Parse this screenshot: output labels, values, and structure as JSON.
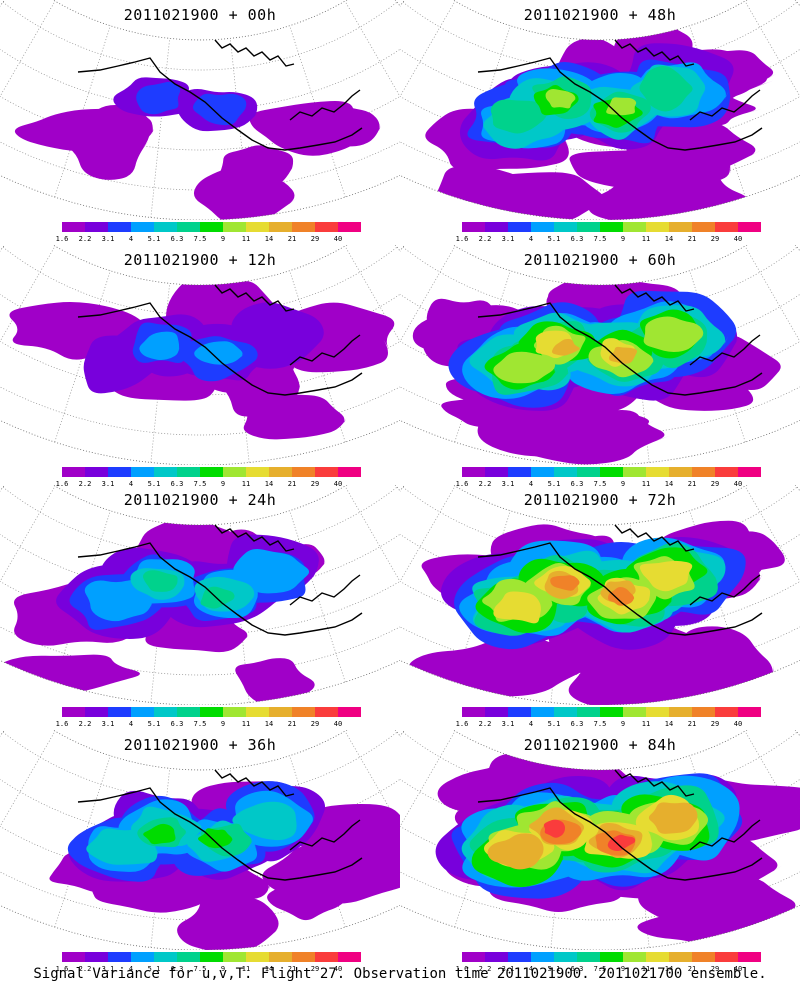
{
  "panels": [
    {
      "title": "2011021900 + 00h",
      "lead_hours": 0
    },
    {
      "title": "2011021900 + 48h",
      "lead_hours": 48
    },
    {
      "title": "2011021900 + 12h",
      "lead_hours": 12
    },
    {
      "title": "2011021900 + 60h",
      "lead_hours": 60
    },
    {
      "title": "2011021900 + 24h",
      "lead_hours": 24
    },
    {
      "title": "2011021900 + 72h",
      "lead_hours": 72
    },
    {
      "title": "2011021900 + 36h",
      "lead_hours": 36
    },
    {
      "title": "2011021900 + 84h",
      "lead_hours": 84
    }
  ],
  "colorbar": {
    "labels": [
      "1.6",
      "2.2",
      "3.1",
      "4",
      "5.1",
      "6.3",
      "7.5",
      "9",
      "11",
      "14",
      "21",
      "29",
      "40"
    ],
    "colors": [
      "#a000c8",
      "#7800dc",
      "#1e3cff",
      "#00a0ff",
      "#00c8c8",
      "#00d28c",
      "#00dc00",
      "#a0e632",
      "#e6dc32",
      "#e6af2d",
      "#f08228",
      "#fa3c3c",
      "#f00082"
    ]
  },
  "footer": "Signal Variance for u,v,T. Flight 27. Observation time 2011021900. 2011021700 ensemble."
}
